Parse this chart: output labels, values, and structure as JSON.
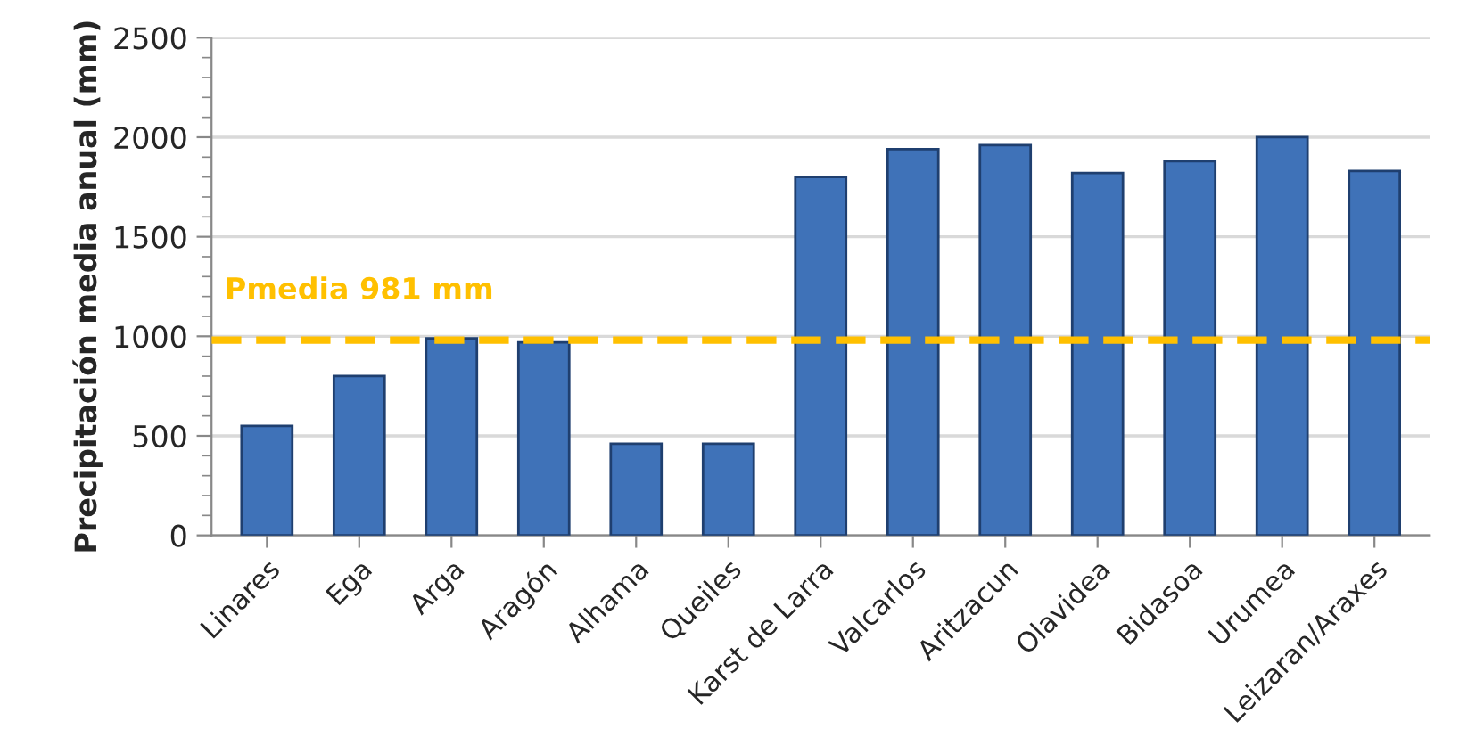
{
  "chart_data": {
    "type": "bar",
    "ylabel": "Precipitación media anual (mm)",
    "categories": [
      "Linares",
      "Ega",
      "Arga",
      "Aragón",
      "Alhama",
      "Queiles",
      "Karst de Larra",
      "Valcarlos",
      "Aritzacun",
      "Olavidea",
      "Bidasoa",
      "Urumea",
      "Leizaran/Araxes"
    ],
    "values": [
      550,
      800,
      990,
      970,
      460,
      460,
      1800,
      1940,
      1960,
      1820,
      1880,
      2000,
      1830
    ],
    "color": "#3f72b8",
    "ylim": [
      0,
      2500
    ],
    "yticks": [
      0,
      500,
      1000,
      1500,
      2000,
      2500
    ],
    "grid": "y",
    "ref_lines": [
      {
        "axis": "y",
        "value": 981,
        "label": "Pmedia 981 mm",
        "color": "#ffc000",
        "line_style": "dashed"
      }
    ]
  }
}
